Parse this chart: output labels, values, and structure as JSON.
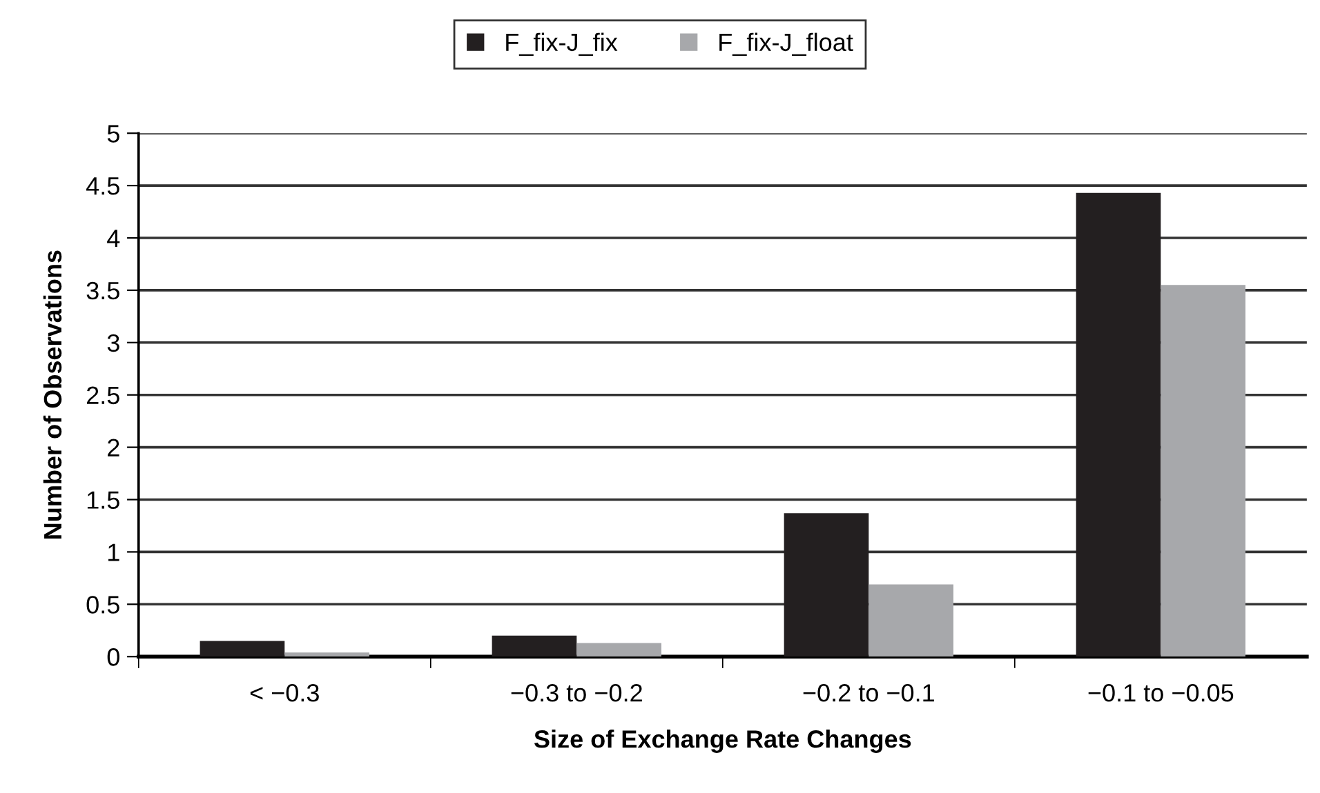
{
  "chart_data": {
    "type": "bar",
    "xlabel": "Size of Exchange Rate Changes",
    "ylabel": "Number of Observations",
    "categories": [
      "< −0.3",
      "−0.3 to −0.2",
      "−0.2 to −0.1",
      "−0.1 to −0.05"
    ],
    "series": [
      {
        "name": "F_fix-J_fix",
        "color": "#231f20",
        "values": [
          0.15,
          0.2,
          1.37,
          4.43
        ]
      },
      {
        "name": "F_fix-J_float",
        "color": "#a7a8ab",
        "values": [
          0.04,
          0.13,
          0.69,
          3.55
        ]
      }
    ],
    "ylim": [
      0,
      5
    ],
    "yticks": [
      0,
      0.5,
      1,
      1.5,
      2,
      2.5,
      3,
      3.5,
      4,
      4.5,
      5
    ],
    "grid": "y",
    "legend": "top"
  }
}
